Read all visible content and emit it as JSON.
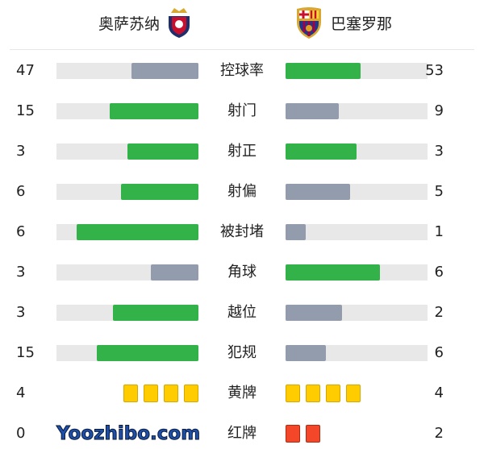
{
  "home": {
    "name": "奥萨苏纳",
    "logo": "osasuna-crest"
  },
  "away": {
    "name": "巴塞罗那",
    "logo": "barcelona-crest"
  },
  "colors": {
    "better": "#34b24a",
    "worse": "#939cad",
    "track": "#e8e8e8",
    "yellow": "#ffcc00",
    "red": "#f4472a"
  },
  "stats": [
    {
      "label": "控球率",
      "home": 47,
      "away": 53
    },
    {
      "label": "射门",
      "home": 15,
      "away": 9
    },
    {
      "label": "射正",
      "home": 3,
      "away": 3
    },
    {
      "label": "射偏",
      "home": 6,
      "away": 5
    },
    {
      "label": "被封堵",
      "home": 6,
      "away": 1
    },
    {
      "label": "角球",
      "home": 3,
      "away": 6
    },
    {
      "label": "越位",
      "home": 3,
      "away": 2
    },
    {
      "label": "犯规",
      "home": 15,
      "away": 6
    }
  ],
  "cards": [
    {
      "label": "黄牌",
      "home": 4,
      "away": 4,
      "type": "yellow"
    },
    {
      "label": "红牌",
      "home": 0,
      "away": 2,
      "type": "red"
    }
  ],
  "watermark": "Yoozhibo.com"
}
